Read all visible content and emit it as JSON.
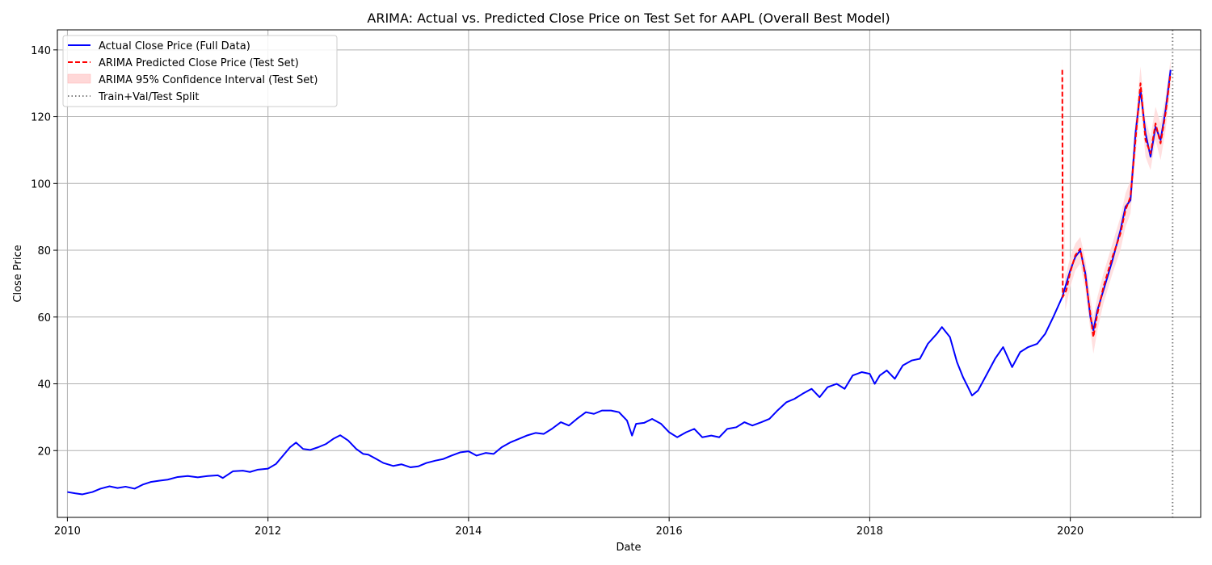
{
  "chart_data": {
    "type": "line",
    "title": "ARIMA: Actual vs. Predicted Close Price on Test Set for AAPL (Overall Best Model)",
    "xlabel": "Date",
    "ylabel": "Close Price",
    "xlim": [
      2009.9,
      2021.3
    ],
    "ylim": [
      0,
      146
    ],
    "xticks": [
      {
        "value": 2010,
        "label": "2010"
      },
      {
        "value": 2012,
        "label": "2012"
      },
      {
        "value": 2014,
        "label": "2014"
      },
      {
        "value": 2016,
        "label": "2016"
      },
      {
        "value": 2018,
        "label": "2018"
      },
      {
        "value": 2020,
        "label": "2020"
      }
    ],
    "yticks": [
      {
        "value": 20,
        "label": "20"
      },
      {
        "value": 40,
        "label": "40"
      },
      {
        "value": 60,
        "label": "60"
      },
      {
        "value": 80,
        "label": "80"
      },
      {
        "value": 100,
        "label": "100"
      },
      {
        "value": 120,
        "label": "120"
      },
      {
        "value": 140,
        "label": "140"
      }
    ],
    "grid": true,
    "legend_position": "top-left",
    "series": [
      {
        "name": "Actual Close Price (Full Data)",
        "style": "solid",
        "color": "#0000ff",
        "points": [
          [
            2010.0,
            7.6
          ],
          [
            2010.08,
            7.2
          ],
          [
            2010.15,
            6.9
          ],
          [
            2010.25,
            7.6
          ],
          [
            2010.33,
            8.6
          ],
          [
            2010.42,
            9.3
          ],
          [
            2010.5,
            8.8
          ],
          [
            2010.58,
            9.2
          ],
          [
            2010.67,
            8.6
          ],
          [
            2010.75,
            9.8
          ],
          [
            2010.83,
            10.6
          ],
          [
            2010.92,
            11.0
          ],
          [
            2011.0,
            11.3
          ],
          [
            2011.1,
            12.1
          ],
          [
            2011.2,
            12.4
          ],
          [
            2011.3,
            12.0
          ],
          [
            2011.4,
            12.4
          ],
          [
            2011.5,
            12.6
          ],
          [
            2011.55,
            11.8
          ],
          [
            2011.6,
            12.8
          ],
          [
            2011.65,
            13.8
          ],
          [
            2011.75,
            14.0
          ],
          [
            2011.82,
            13.6
          ],
          [
            2011.9,
            14.3
          ],
          [
            2012.0,
            14.6
          ],
          [
            2012.08,
            16.0
          ],
          [
            2012.15,
            18.5
          ],
          [
            2012.22,
            21.0
          ],
          [
            2012.28,
            22.4
          ],
          [
            2012.35,
            20.5
          ],
          [
            2012.42,
            20.2
          ],
          [
            2012.5,
            21.0
          ],
          [
            2012.58,
            22.0
          ],
          [
            2012.65,
            23.5
          ],
          [
            2012.72,
            24.6
          ],
          [
            2012.8,
            23.0
          ],
          [
            2012.88,
            20.5
          ],
          [
            2012.95,
            19.0
          ],
          [
            2013.0,
            18.8
          ],
          [
            2013.08,
            17.5
          ],
          [
            2013.15,
            16.3
          ],
          [
            2013.25,
            15.4
          ],
          [
            2013.33,
            15.9
          ],
          [
            2013.42,
            15.0
          ],
          [
            2013.5,
            15.3
          ],
          [
            2013.58,
            16.3
          ],
          [
            2013.67,
            17.0
          ],
          [
            2013.75,
            17.5
          ],
          [
            2013.83,
            18.5
          ],
          [
            2013.92,
            19.5
          ],
          [
            2014.0,
            19.8
          ],
          [
            2014.08,
            18.5
          ],
          [
            2014.17,
            19.3
          ],
          [
            2014.25,
            19.0
          ],
          [
            2014.33,
            21.0
          ],
          [
            2014.42,
            22.5
          ],
          [
            2014.5,
            23.5
          ],
          [
            2014.58,
            24.5
          ],
          [
            2014.67,
            25.3
          ],
          [
            2014.75,
            25.0
          ],
          [
            2014.83,
            26.5
          ],
          [
            2014.92,
            28.5
          ],
          [
            2015.0,
            27.5
          ],
          [
            2015.08,
            29.5
          ],
          [
            2015.17,
            31.5
          ],
          [
            2015.25,
            31.0
          ],
          [
            2015.33,
            32.0
          ],
          [
            2015.42,
            32.0
          ],
          [
            2015.5,
            31.5
          ],
          [
            2015.58,
            29.0
          ],
          [
            2015.63,
            24.5
          ],
          [
            2015.67,
            28.0
          ],
          [
            2015.75,
            28.3
          ],
          [
            2015.83,
            29.5
          ],
          [
            2015.92,
            28.0
          ],
          [
            2016.0,
            25.5
          ],
          [
            2016.08,
            24.0
          ],
          [
            2016.17,
            25.5
          ],
          [
            2016.25,
            26.5
          ],
          [
            2016.33,
            24.0
          ],
          [
            2016.42,
            24.5
          ],
          [
            2016.5,
            24.0
          ],
          [
            2016.58,
            26.5
          ],
          [
            2016.67,
            27.0
          ],
          [
            2016.75,
            28.5
          ],
          [
            2016.83,
            27.5
          ],
          [
            2016.92,
            28.5
          ],
          [
            2017.0,
            29.5
          ],
          [
            2017.08,
            32.0
          ],
          [
            2017.17,
            34.5
          ],
          [
            2017.25,
            35.5
          ],
          [
            2017.33,
            37.0
          ],
          [
            2017.42,
            38.5
          ],
          [
            2017.5,
            36.0
          ],
          [
            2017.58,
            39.0
          ],
          [
            2017.67,
            40.0
          ],
          [
            2017.75,
            38.5
          ],
          [
            2017.83,
            42.5
          ],
          [
            2017.92,
            43.5
          ],
          [
            2018.0,
            43.0
          ],
          [
            2018.05,
            40.0
          ],
          [
            2018.1,
            42.5
          ],
          [
            2018.17,
            44.0
          ],
          [
            2018.25,
            41.5
          ],
          [
            2018.33,
            45.5
          ],
          [
            2018.42,
            47.0
          ],
          [
            2018.5,
            47.5
          ],
          [
            2018.58,
            52.0
          ],
          [
            2018.67,
            55.0
          ],
          [
            2018.72,
            57.0
          ],
          [
            2018.8,
            54.0
          ],
          [
            2018.87,
            46.5
          ],
          [
            2018.93,
            42.0
          ],
          [
            2018.98,
            39.0
          ],
          [
            2019.02,
            36.5
          ],
          [
            2019.08,
            38.0
          ],
          [
            2019.17,
            43.0
          ],
          [
            2019.25,
            47.5
          ],
          [
            2019.33,
            51.0
          ],
          [
            2019.42,
            45.0
          ],
          [
            2019.5,
            49.5
          ],
          [
            2019.58,
            51.0
          ],
          [
            2019.67,
            52.0
          ],
          [
            2019.75,
            55.0
          ],
          [
            2019.83,
            60.0
          ],
          [
            2019.92,
            66.0
          ],
          [
            2020.0,
            74.0
          ],
          [
            2020.05,
            78.0
          ],
          [
            2020.1,
            80.0
          ],
          [
            2020.15,
            73.0
          ],
          [
            2020.2,
            60.0
          ],
          [
            2020.23,
            56.0
          ],
          [
            2020.27,
            62.0
          ],
          [
            2020.33,
            68.0
          ],
          [
            2020.42,
            77.0
          ],
          [
            2020.5,
            86.0
          ],
          [
            2020.55,
            93.0
          ],
          [
            2020.6,
            95.0
          ],
          [
            2020.65,
            115.0
          ],
          [
            2020.7,
            128.0
          ],
          [
            2020.75,
            115.0
          ],
          [
            2020.8,
            108.0
          ],
          [
            2020.85,
            117.0
          ],
          [
            2020.9,
            113.0
          ],
          [
            2020.95,
            122.0
          ],
          [
            2021.0,
            134.0
          ]
        ]
      },
      {
        "name": "ARIMA Predicted Close Price (Test Set)",
        "style": "dashed",
        "color": "#ff0000",
        "points": [
          [
            2019.92,
            134.0
          ],
          [
            2019.925,
            66.0
          ],
          [
            2019.96,
            68.0
          ],
          [
            2020.0,
            73.5
          ],
          [
            2020.05,
            78.5
          ],
          [
            2020.1,
            80.5
          ],
          [
            2020.15,
            72.0
          ],
          [
            2020.2,
            61.0
          ],
          [
            2020.23,
            54.0
          ],
          [
            2020.27,
            61.0
          ],
          [
            2020.33,
            69.0
          ],
          [
            2020.42,
            78.0
          ],
          [
            2020.5,
            85.0
          ],
          [
            2020.55,
            92.0
          ],
          [
            2020.6,
            96.0
          ],
          [
            2020.65,
            113.0
          ],
          [
            2020.7,
            130.0
          ],
          [
            2020.75,
            113.0
          ],
          [
            2020.8,
            109.0
          ],
          [
            2020.85,
            118.0
          ],
          [
            2020.9,
            112.0
          ],
          [
            2020.95,
            121.0
          ],
          [
            2021.0,
            133.0
          ]
        ]
      },
      {
        "name": "ARIMA 95% Confidence Interval (Test Set)",
        "style": "band",
        "color": "#ffd8d8",
        "upper": [
          [
            2019.92,
            138.0
          ],
          [
            2019.95,
            72.0
          ],
          [
            2020.0,
            78.0
          ],
          [
            2020.05,
            82.0
          ],
          [
            2020.1,
            84.0
          ],
          [
            2020.15,
            77.0
          ],
          [
            2020.2,
            66.0
          ],
          [
            2020.23,
            60.0
          ],
          [
            2020.27,
            66.0
          ],
          [
            2020.33,
            73.0
          ],
          [
            2020.42,
            82.0
          ],
          [
            2020.5,
            90.0
          ],
          [
            2020.55,
            97.0
          ],
          [
            2020.6,
            101.0
          ],
          [
            2020.65,
            119.0
          ],
          [
            2020.7,
            135.0
          ],
          [
            2020.75,
            119.0
          ],
          [
            2020.8,
            114.0
          ],
          [
            2020.85,
            123.0
          ],
          [
            2020.9,
            118.0
          ],
          [
            2020.95,
            126.0
          ],
          [
            2021.0,
            137.0
          ]
        ],
        "lower": [
          [
            2019.92,
            130.0
          ],
          [
            2019.95,
            62.0
          ],
          [
            2020.0,
            69.0
          ],
          [
            2020.05,
            74.0
          ],
          [
            2020.1,
            76.0
          ],
          [
            2020.15,
            68.0
          ],
          [
            2020.2,
            56.0
          ],
          [
            2020.23,
            49.0
          ],
          [
            2020.27,
            56.0
          ],
          [
            2020.33,
            64.0
          ],
          [
            2020.42,
            73.0
          ],
          [
            2020.5,
            80.0
          ],
          [
            2020.55,
            87.0
          ],
          [
            2020.6,
            91.0
          ],
          [
            2020.65,
            108.0
          ],
          [
            2020.7,
            124.0
          ],
          [
            2020.75,
            108.0
          ],
          [
            2020.8,
            104.0
          ],
          [
            2020.85,
            113.0
          ],
          [
            2020.9,
            107.0
          ],
          [
            2020.95,
            116.0
          ],
          [
            2021.0,
            129.0
          ]
        ]
      },
      {
        "name": "Train+Val/Test Split",
        "style": "dotted",
        "color": "#808080",
        "x": 2021.02
      }
    ]
  }
}
